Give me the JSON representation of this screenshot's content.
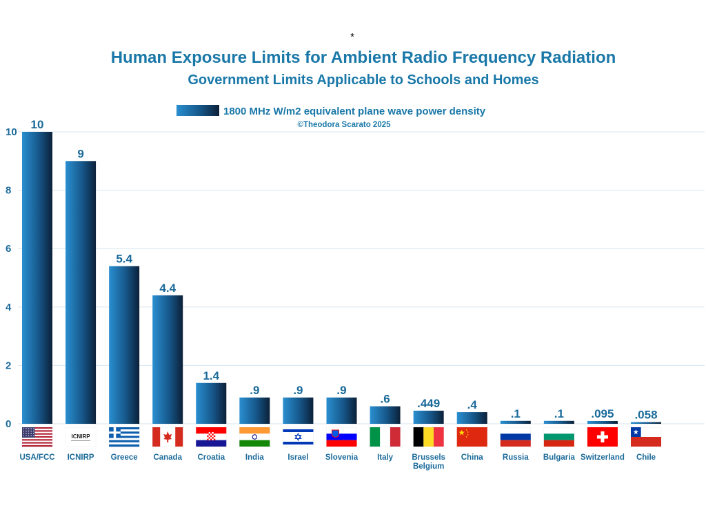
{
  "chart_data": {
    "type": "bar",
    "marker": "*",
    "title": "Human Exposure Limits for Ambient Radio Frequency Radiation",
    "subtitle": "Government Limits Applicable to Schools and Homes",
    "legend": {
      "label": "1800 MHz W/m2 equivalent plane wave power density",
      "position": "top-center"
    },
    "copyright": "©Theodora Scarato 2025",
    "xlabel": "",
    "ylabel": "",
    "ylim": [
      0,
      10
    ],
    "yticks": [
      "0",
      "2",
      "4",
      "6",
      "8",
      "10"
    ],
    "grid": true,
    "categories": [
      {
        "lines": [
          "USA/FCC"
        ],
        "flag": "usa",
        "value": 10,
        "label": "10"
      },
      {
        "lines": [
          "ICNIRP"
        ],
        "flag": "icnirp",
        "value": 9,
        "label": "9"
      },
      {
        "lines": [
          "Greece"
        ],
        "flag": "greece",
        "value": 5.4,
        "label": "5.4"
      },
      {
        "lines": [
          "Canada"
        ],
        "flag": "canada",
        "value": 4.4,
        "label": "4.4"
      },
      {
        "lines": [
          "Croatia"
        ],
        "flag": "croatia",
        "value": 1.4,
        "label": "1.4"
      },
      {
        "lines": [
          "India"
        ],
        "flag": "india",
        "value": 0.9,
        "label": ".9"
      },
      {
        "lines": [
          "Israel"
        ],
        "flag": "israel",
        "value": 0.9,
        "label": ".9"
      },
      {
        "lines": [
          "Slovenia"
        ],
        "flag": "slovenia",
        "value": 0.9,
        "label": ".9"
      },
      {
        "lines": [
          "Italy"
        ],
        "flag": "italy",
        "value": 0.6,
        "label": ".6"
      },
      {
        "lines": [
          "Brussels",
          "Belgium"
        ],
        "flag": "belgium",
        "value": 0.449,
        "label": ".449"
      },
      {
        "lines": [
          "China"
        ],
        "flag": "china",
        "value": 0.4,
        "label": ".4"
      },
      {
        "lines": [
          "Russia"
        ],
        "flag": "russia",
        "value": 0.1,
        "label": ".1"
      },
      {
        "lines": [
          "Bulgaria"
        ],
        "flag": "bulgaria",
        "value": 0.1,
        "label": ".1"
      },
      {
        "lines": [
          "Switzerland"
        ],
        "flag": "switzerland",
        "value": 0.095,
        "label": ".095"
      },
      {
        "lines": [
          "Chile"
        ],
        "flag": "chile",
        "value": 0.058,
        "label": ".058"
      }
    ],
    "icnirp_logo_text": "ICNIRP",
    "colors": {
      "bar_light": "#2a8fd0",
      "bar_dark": "#0b2038",
      "text": "#1a6a9a",
      "grid": "#d6e6ef"
    }
  }
}
